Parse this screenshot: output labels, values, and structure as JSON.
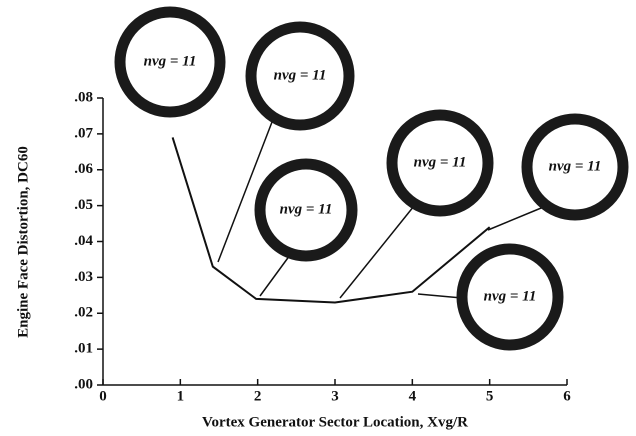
{
  "chart_data": {
    "type": "line",
    "y_label": "Engine Face Distortion, DC60",
    "x_label": "Vortex Generator Sector Location, Xvg/R",
    "x": [
      0.9,
      1.42,
      1.98,
      3,
      4,
      5
    ],
    "series": [
      {
        "color": "#111111",
        "values": [
          0.069,
          0.033,
          0.024,
          0.023,
          0.026,
          0.044
        ]
      }
    ],
    "xlim": [
      0,
      6
    ],
    "xticks": [
      0,
      1,
      2,
      3,
      4,
      5,
      6
    ],
    "ylim": [
      0,
      0.08
    ],
    "yticks": [
      {
        "value": 0,
        "label": ".00"
      },
      {
        "value": 0.01,
        "label": ".01"
      },
      {
        "value": 0.02,
        "label": ".02"
      },
      {
        "value": 0.03,
        "label": ".03"
      },
      {
        "value": 0.04,
        "label": ".04"
      },
      {
        "value": 0.05,
        "label": ".05"
      },
      {
        "value": 0.06,
        "label": ".06"
      },
      {
        "value": 0.07,
        "label": ".07"
      },
      {
        "value": 0.08,
        "label": ".08"
      }
    ],
    "annotations": [
      "nvg = 11",
      "nvg = 11",
      "nvg = 11",
      "nvg = 11",
      "nvg = 11",
      "nvg = 11"
    ]
  }
}
